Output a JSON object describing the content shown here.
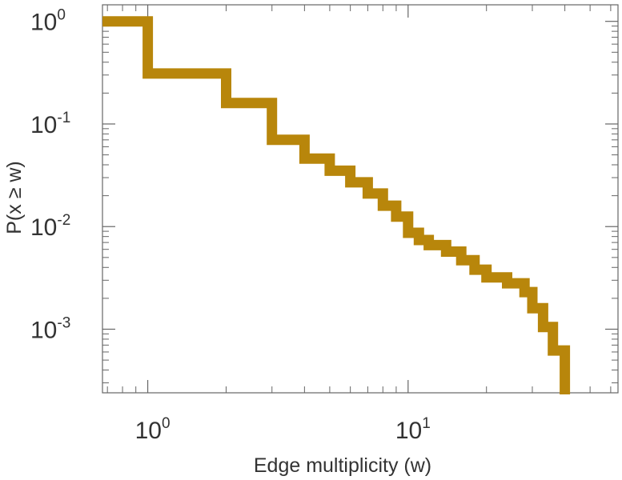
{
  "chart_data": {
    "type": "line",
    "step": true,
    "title": "",
    "xlabel": "Edge multiplicity (w)",
    "ylabel": "P(x ≥ w)",
    "xscale": "log",
    "yscale": "log",
    "xlim": [
      0.67,
      64
    ],
    "ylim": [
      0.00024,
      1.45
    ],
    "grid": false,
    "legend": "none",
    "x_ticks": [
      {
        "value": 1,
        "base": "10",
        "exp": "0"
      },
      {
        "value": 10,
        "base": "10",
        "exp": "1"
      }
    ],
    "y_ticks": [
      {
        "value": 1,
        "base": "10",
        "exp": "0"
      },
      {
        "value": 0.1,
        "base": "10",
        "exp": "-1"
      },
      {
        "value": 0.01,
        "base": "10",
        "exp": "-2"
      },
      {
        "value": 0.001,
        "base": "10",
        "exp": "-3"
      }
    ],
    "series": [
      {
        "color": "#b8860b",
        "x": [
          0.67,
          1,
          2,
          3,
          4,
          5,
          6,
          7,
          8,
          9,
          10,
          11,
          12,
          14,
          16,
          18,
          20,
          24,
          28,
          30,
          33,
          36,
          40
        ],
        "y": [
          1.0,
          0.31,
          0.16,
          0.07,
          0.046,
          0.035,
          0.027,
          0.021,
          0.016,
          0.0125,
          0.0087,
          0.0074,
          0.0066,
          0.0057,
          0.0047,
          0.0038,
          0.0032,
          0.0028,
          0.0023,
          0.0016,
          0.00105,
          0.00062,
          0.00033
        ]
      }
    ]
  }
}
